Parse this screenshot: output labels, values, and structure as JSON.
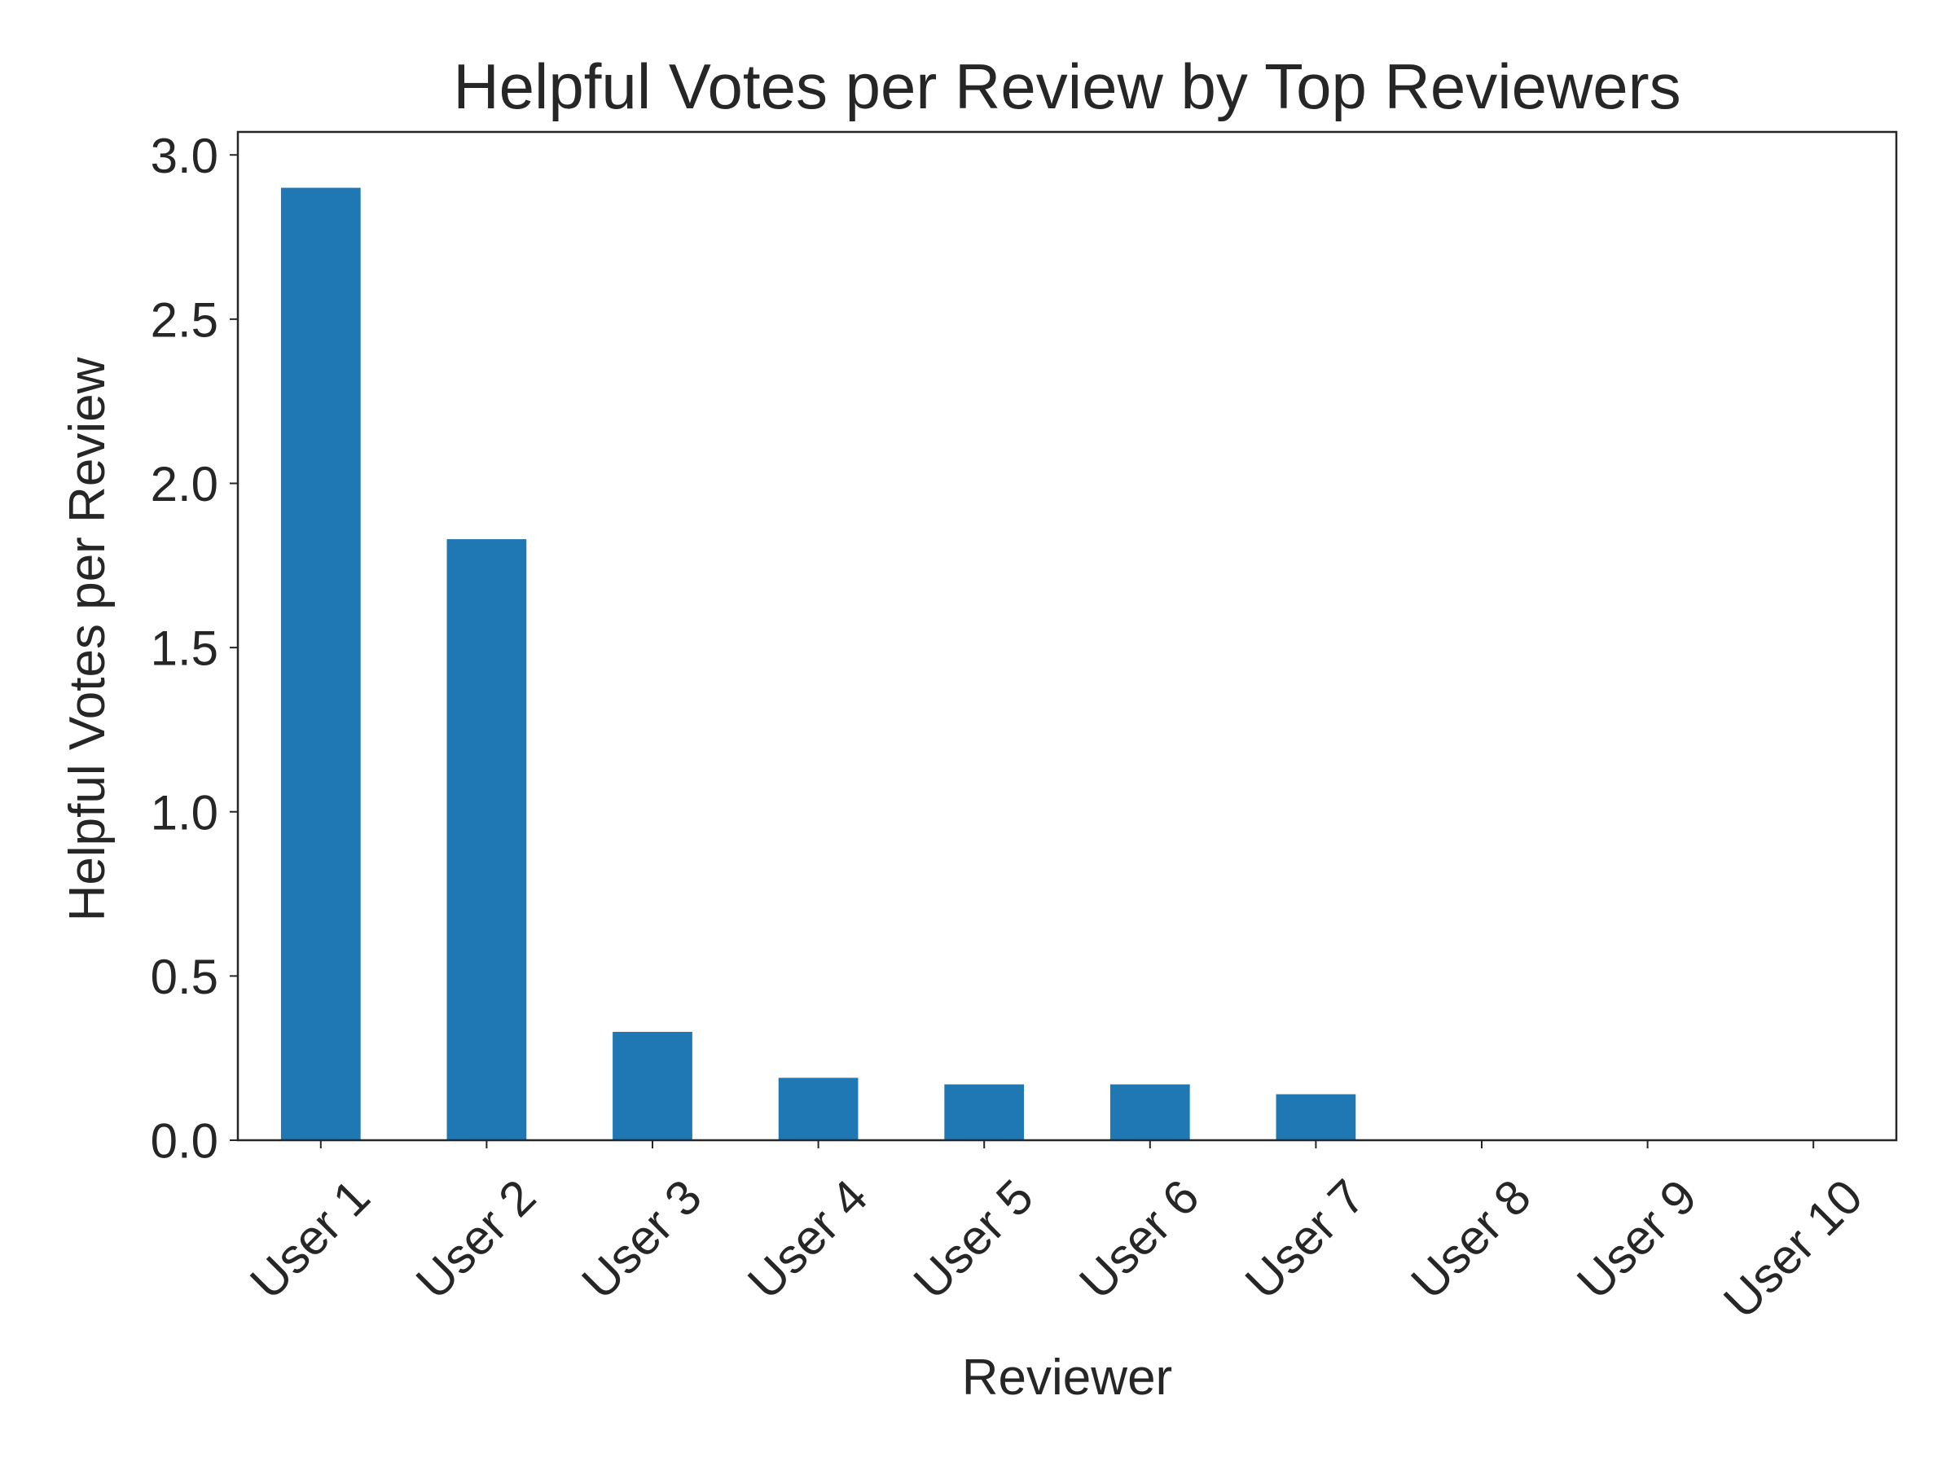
{
  "chart_data": {
    "type": "bar",
    "title": "Helpful Votes per Review by Top Reviewers",
    "xlabel": "Reviewer",
    "ylabel": "Helpful Votes per Review",
    "categories": [
      "User 1",
      "User 2",
      "User 3",
      "User 4",
      "User 5",
      "User 6",
      "User 7",
      "User 8",
      "User 9",
      "User 10"
    ],
    "values": [
      2.9,
      1.83,
      0.33,
      0.19,
      0.17,
      0.17,
      0.14,
      0.0,
      0.0,
      0.0
    ],
    "ylim": [
      0,
      3.07
    ],
    "yticks": [
      "0.0",
      "0.5",
      "1.0",
      "1.5",
      "2.0",
      "2.5",
      "3.0"
    ],
    "grid": false,
    "legend": "none",
    "bar_color": "#1f77b4",
    "axis_color": "#262626"
  }
}
